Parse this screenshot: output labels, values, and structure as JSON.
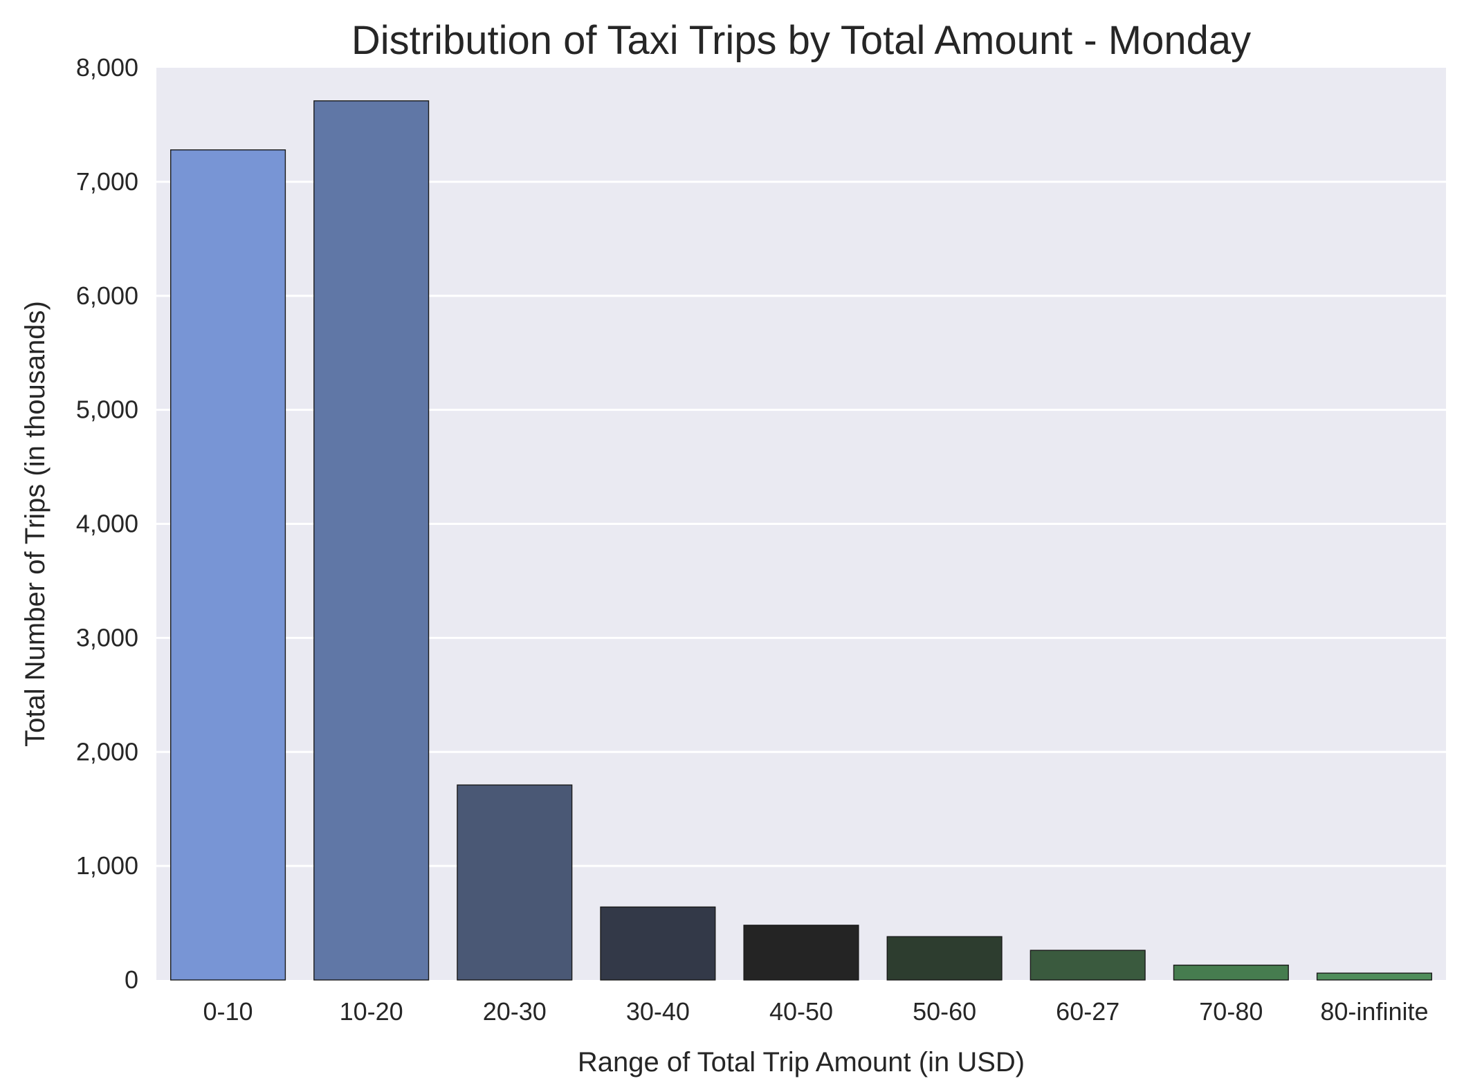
{
  "chart_data": {
    "type": "bar",
    "title": "Distribution of Taxi Trips by Total Amount - Monday",
    "xlabel": "Range of Total Trip Amount (in USD)",
    "ylabel": "Total Number of Trips (in thousands)",
    "categories": [
      "0-10",
      "10-20",
      "20-30",
      "30-40",
      "40-50",
      "50-60",
      "60-27",
      "70-80",
      "80-infinite"
    ],
    "values": [
      7280,
      7710,
      1710,
      640,
      480,
      380,
      260,
      130,
      60
    ],
    "colors": [
      "#7895d5",
      "#6077a6",
      "#4a5875",
      "#333948",
      "#242424",
      "#2d3d2f",
      "#3a5a3e",
      "#467c4f",
      "#4f8d5b"
    ],
    "ylim": [
      0,
      8000
    ],
    "yticks": [
      0,
      1000,
      2000,
      3000,
      4000,
      5000,
      6000,
      7000,
      8000
    ],
    "ytick_labels": [
      "0",
      "1,000",
      "2,000",
      "3,000",
      "4,000",
      "5,000",
      "6,000",
      "7,000",
      "8,000"
    ],
    "grid": true,
    "background": "#eaeaf2",
    "gridline_color": "#ffffff"
  }
}
